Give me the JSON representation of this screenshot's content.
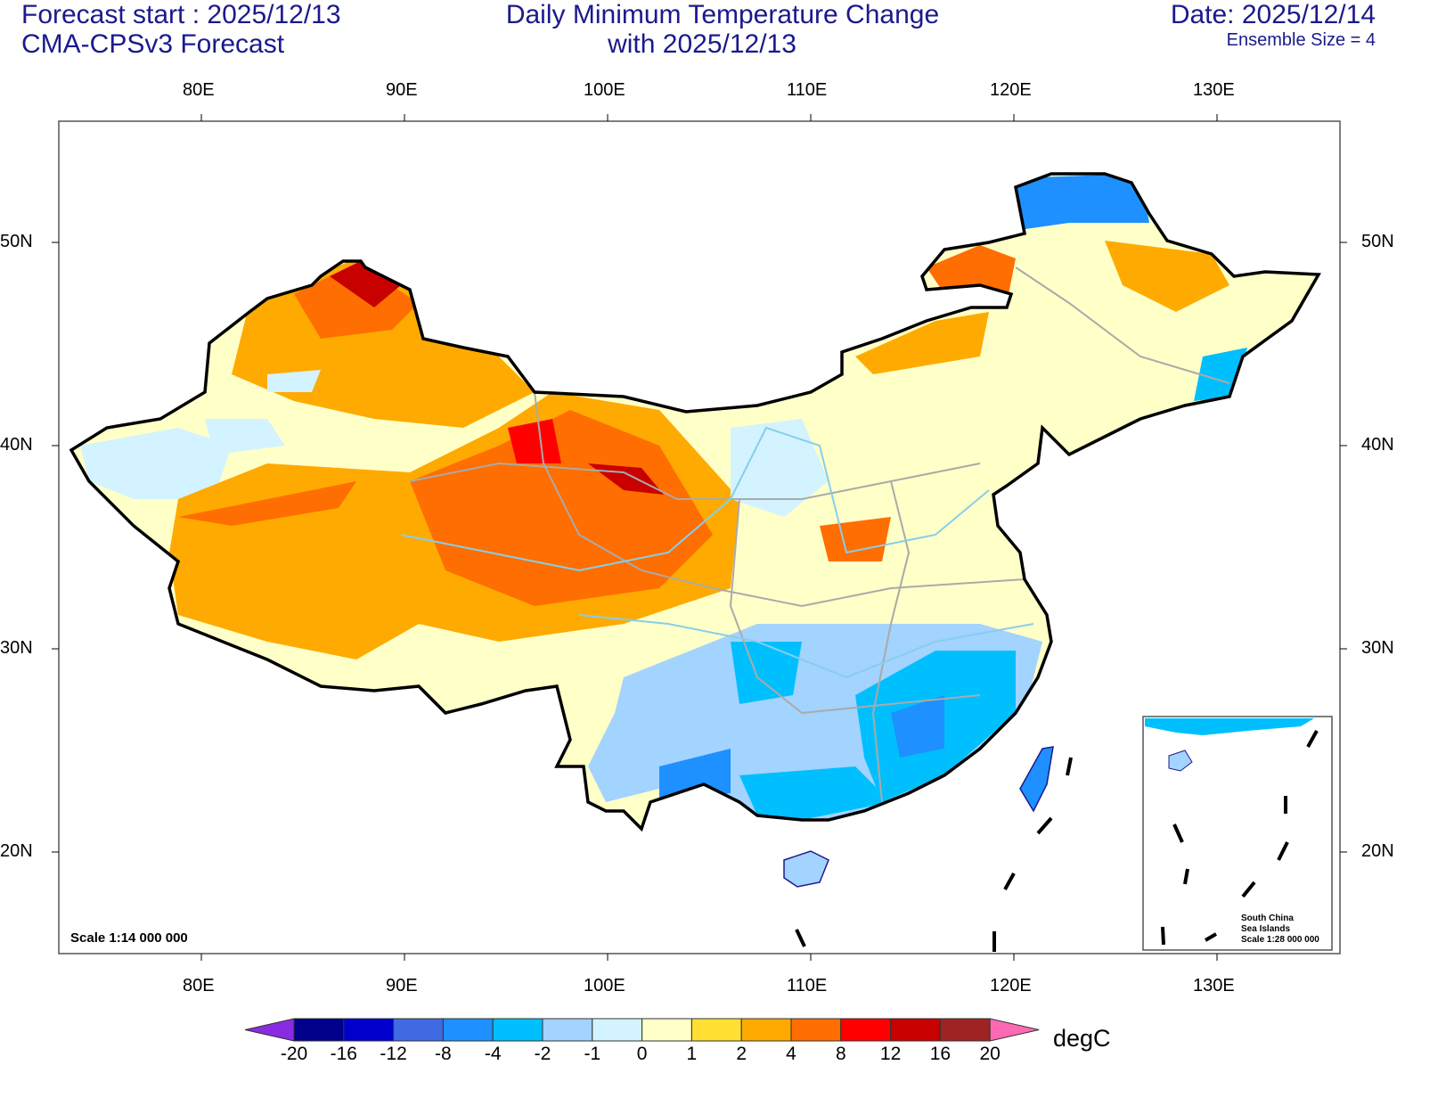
{
  "header": {
    "left_line1": "Forecast start : 2025/12/13",
    "left_line2": "CMA-CPSv3 Forecast",
    "center_line1": "Daily Minimum Temperature Change",
    "center_line2": "with 2025/12/13",
    "right_line1": "Date: 2025/12/14",
    "right_line2": "Ensemble Size = 4"
  },
  "axes": {
    "lon_labels": [
      "80E",
      "90E",
      "100E",
      "110E",
      "120E",
      "130E"
    ],
    "lat_labels": [
      "50N",
      "40N",
      "30N",
      "20N"
    ]
  },
  "map": {
    "scale_label": "Scale 1:14 000 000",
    "inset_label_1": "South China",
    "inset_label_2": "Sea Islands",
    "inset_label_3": "Scale 1:28 000 000"
  },
  "colorbar": {
    "unit": "degC",
    "labels": [
      "-20",
      "-16",
      "-12",
      "-8",
      "-4",
      "-2",
      "-1",
      "0",
      "1",
      "2",
      "4",
      "8",
      "12",
      "16",
      "20"
    ],
    "colors": [
      "#00008b",
      "#0000cd",
      "#4169e1",
      "#1e90ff",
      "#00bfff",
      "#a3d3ff",
      "#d2f3ff",
      "#ffffc8",
      "#ffe033",
      "#ffaa00",
      "#ff6e00",
      "#ff0000",
      "#c80000",
      "#a02323"
    ],
    "under_color": "#8a2be2",
    "over_color": "#ff69b4"
  }
}
